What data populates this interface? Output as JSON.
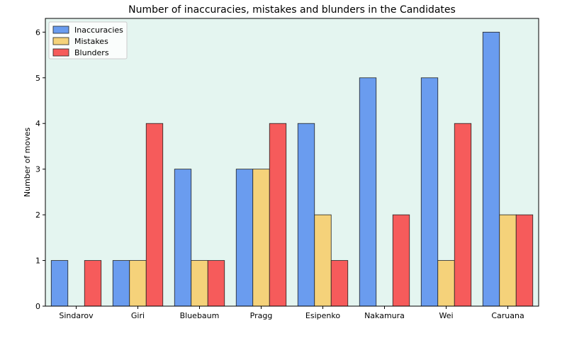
{
  "chart_data": {
    "type": "bar",
    "title": "Number of inaccuracies, mistakes and blunders in the Candidates",
    "xlabel": "",
    "ylabel": "Number of moves",
    "categories": [
      "Sindarov",
      "Giri",
      "Bluebaum",
      "Pragg",
      "Esipenko",
      "Nakamura",
      "Wei",
      "Caruana"
    ],
    "series": [
      {
        "name": "Inaccuracies",
        "values": [
          1,
          1,
          3,
          3,
          4,
          5,
          5,
          6
        ],
        "color": "#6a9cef"
      },
      {
        "name": "Mistakes",
        "values": [
          0,
          1,
          1,
          3,
          2,
          0,
          1,
          2
        ],
        "color": "#f5d27a"
      },
      {
        "name": "Blunders",
        "values": [
          1,
          4,
          1,
          4,
          1,
          2,
          4,
          2
        ],
        "color": "#f65b5b"
      }
    ],
    "ylim": [
      0,
      6.3
    ],
    "yticks": [
      0,
      1,
      2,
      3,
      4,
      5,
      6
    ],
    "plot_background": "#e4f5f0",
    "grid": false,
    "legend_position": "top-left"
  }
}
